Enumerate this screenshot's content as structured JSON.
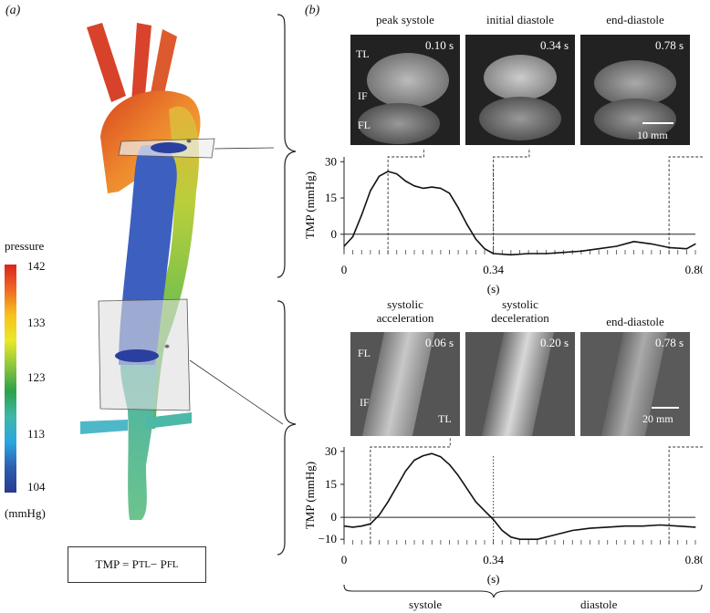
{
  "panel_a": {
    "label": "(a)",
    "legend": {
      "title": "pressure",
      "unit": "(mmHg)",
      "ticks": [
        "142",
        "133",
        "123",
        "113",
        "104"
      ],
      "colors": [
        "#d7261e",
        "#f06a22",
        "#f7c21f",
        "#e9e829",
        "#8cc63e",
        "#2ca14a",
        "#3fb6a8",
        "#2aa6e0",
        "#2b5fb0",
        "#2a3a8f"
      ]
    },
    "marker": "*",
    "formula": {
      "prefix": "TMP = P",
      "sub1": "TL",
      "mid": " − P",
      "sub2": "FL"
    }
  },
  "panel_b": {
    "label": "(b)",
    "top": {
      "images": [
        {
          "caption_lines": [
            "peak systole"
          ],
          "time": "0.10 s",
          "labels": [
            "TL",
            "IF",
            "FL"
          ]
        },
        {
          "caption_lines": [
            "initial diastole"
          ],
          "time": "0.34 s",
          "labels": []
        },
        {
          "caption_lines": [
            "end-diastole"
          ],
          "time": "0.78 s",
          "labels": [],
          "scale": "10 mm"
        }
      ]
    },
    "bottom": {
      "images": [
        {
          "caption_lines": [
            "systolic",
            "acceleration"
          ],
          "time": "0.06 s",
          "labels": [
            "FL",
            "IF",
            "TL"
          ]
        },
        {
          "caption_lines": [
            "systolic",
            "deceleration"
          ],
          "time": "0.20 s",
          "labels": []
        },
        {
          "caption_lines": [
            "end-diastole"
          ],
          "time": "0.78 s",
          "labels": [],
          "scale": "20 mm"
        }
      ]
    },
    "phases": {
      "systole": "systole",
      "diastole": "diastole"
    }
  },
  "chart_data": [
    {
      "type": "line",
      "ylabel": "TMP (mmHg)",
      "xlabel": "(s)",
      "x_ticks": [
        "0",
        "0.34",
        "0.80"
      ],
      "y_ticks": [
        "30",
        "15",
        "0"
      ],
      "ylim": [
        -8,
        32
      ],
      "xlim": [
        0,
        0.8
      ],
      "series": [
        {
          "x": [
            0.0,
            0.02,
            0.04,
            0.06,
            0.08,
            0.1,
            0.12,
            0.14,
            0.16,
            0.18,
            0.2,
            0.22,
            0.24,
            0.26,
            0.28,
            0.3,
            0.32,
            0.34,
            0.38,
            0.42,
            0.46,
            0.5,
            0.54,
            0.58,
            0.62,
            0.66,
            0.7,
            0.74,
            0.78,
            0.8
          ],
          "y": [
            -5,
            -1,
            8,
            18,
            24,
            26,
            25,
            22,
            20,
            19,
            19.5,
            19,
            17,
            11,
            4,
            -2,
            -6,
            -8,
            -8.5,
            -8,
            -8,
            -7.5,
            -7,
            -6,
            -5,
            -3,
            -4,
            -5.5,
            -6,
            -4
          ]
        }
      ]
    },
    {
      "type": "line",
      "ylabel": "TMP (mmHg)",
      "xlabel": "(s)",
      "x_ticks": [
        "0",
        "0.34",
        "0.80"
      ],
      "y_ticks": [
        "30",
        "15",
        "0",
        "−10"
      ],
      "ylim": [
        -12,
        32
      ],
      "xlim": [
        0,
        0.8
      ],
      "series": [
        {
          "x": [
            0.0,
            0.02,
            0.04,
            0.06,
            0.08,
            0.1,
            0.12,
            0.14,
            0.16,
            0.18,
            0.2,
            0.22,
            0.24,
            0.26,
            0.28,
            0.3,
            0.32,
            0.34,
            0.36,
            0.38,
            0.4,
            0.44,
            0.48,
            0.52,
            0.56,
            0.6,
            0.64,
            0.68,
            0.72,
            0.76,
            0.8
          ],
          "y": [
            -4,
            -4.5,
            -4,
            -3,
            1,
            7,
            14,
            21,
            26,
            28,
            29,
            27.5,
            24,
            19,
            13,
            7,
            3,
            -1,
            -6,
            -9,
            -10,
            -10,
            -8,
            -6,
            -5,
            -4.5,
            -4,
            -4,
            -3.5,
            -4,
            -4.5
          ]
        }
      ]
    }
  ]
}
